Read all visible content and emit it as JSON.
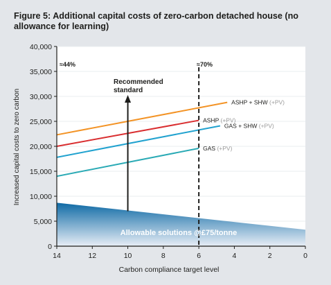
{
  "figure": {
    "title": "Figure 5: Additional capital costs of zero-carbon detached house (no allowance for learning)"
  },
  "chart_data": {
    "type": "line",
    "title": "Figure 5: Additional capital costs of zero-carbon detached house (no allowance for learning)",
    "xlabel": "Carbon compliance target level",
    "ylabel": "Increased capital costs to zero carbon",
    "xlim": [
      14,
      0
    ],
    "ylim": [
      0,
      40000
    ],
    "x_ticks": [
      14,
      12,
      10,
      8,
      6,
      4,
      2,
      0
    ],
    "x_tick_labels": [
      "14",
      "12",
      "10",
      "8",
      "6",
      "4",
      "2",
      "0"
    ],
    "y_ticks": [
      0,
      5000,
      10000,
      15000,
      20000,
      25000,
      30000,
      35000,
      40000
    ],
    "y_tick_labels": [
      "0",
      "5,000",
      "10,000",
      "15,000",
      "20,000",
      "25,000",
      "30,000",
      "35,000",
      "40,000"
    ],
    "grid": "horizontal",
    "series": [
      {
        "name": "ASHP + SHW",
        "suffix": " (+PV)",
        "color": "#f39325",
        "x": [
          14,
          4.4
        ],
        "y": [
          22300,
          28800
        ]
      },
      {
        "name": "ASHP",
        "suffix": " (+PV)",
        "color": "#d92e30",
        "x": [
          14,
          6
        ],
        "y": [
          20000,
          25200
        ]
      },
      {
        "name": "GAS + SHW",
        "suffix": " (+PV)",
        "color": "#21a2cf",
        "x": [
          14,
          4.8
        ],
        "y": [
          17800,
          24100
        ]
      },
      {
        "name": "GAS",
        "suffix": " (+PV)",
        "color": "#2aaab5",
        "x": [
          14,
          6
        ],
        "y": [
          14000,
          19600
        ]
      }
    ],
    "area": {
      "name": "Allowable solutions @£75/tonne",
      "color_top": "#0f6aa5",
      "color_bottom": "#e8eef6",
      "x": [
        14,
        0
      ],
      "y": [
        8700,
        3300
      ]
    },
    "vline": {
      "x": 6,
      "label": "≈70%",
      "style": "dashed"
    },
    "annotations": {
      "left_label": "≈44%",
      "arrow_label": [
        "Recommended",
        "standard"
      ],
      "arrow_x": 10,
      "arrow_y_from": 7000,
      "arrow_y_to": 30000
    }
  }
}
